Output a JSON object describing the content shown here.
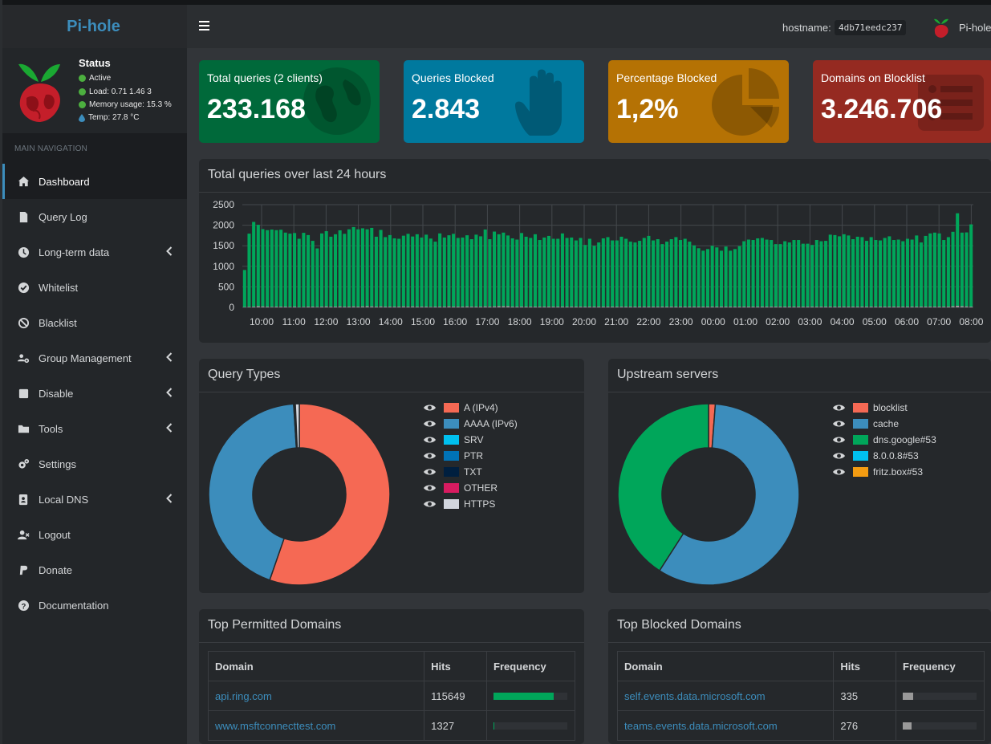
{
  "app": {
    "logo": "Pi-hole"
  },
  "status": {
    "title": "Status",
    "active": "Active",
    "load": "Load:  0.71  1.46  3",
    "memory": "Memory usage:  15.3 %",
    "temp": "Temp: 27.8 °C"
  },
  "nav": {
    "header": "MAIN NAVIGATION",
    "items": [
      {
        "label": "Dashboard",
        "icon": "home-icon",
        "active": true,
        "chevron": false
      },
      {
        "label": "Query Log",
        "icon": "file-icon",
        "chevron": false
      },
      {
        "label": "Long-term data",
        "icon": "clock-icon",
        "chevron": true
      },
      {
        "label": "Whitelist",
        "icon": "check-circle-icon",
        "chevron": false
      },
      {
        "label": "Blacklist",
        "icon": "ban-icon",
        "chevron": false
      },
      {
        "label": "Group Management",
        "icon": "users-cog-icon",
        "chevron": true
      },
      {
        "label": "Disable",
        "icon": "stop-icon",
        "chevron": true
      },
      {
        "label": "Tools",
        "icon": "folder-icon",
        "chevron": true
      },
      {
        "label": "Settings",
        "icon": "cogs-icon",
        "chevron": false
      },
      {
        "label": "Local DNS",
        "icon": "address-book-icon",
        "chevron": true
      },
      {
        "label": "Logout",
        "icon": "user-times-icon",
        "chevron": false
      },
      {
        "label": "Donate",
        "icon": "paypal-icon",
        "chevron": false
      },
      {
        "label": "Documentation",
        "icon": "question-circle-icon",
        "chevron": false
      }
    ]
  },
  "topbar": {
    "hostname_label": "hostname:",
    "hostname": "4db71eedc237",
    "user": "Pi-hole"
  },
  "stats": [
    {
      "label": "Total queries (2 clients)",
      "value": "233.168",
      "color": "#00693a",
      "icon": "globe-icon"
    },
    {
      "label": "Queries Blocked",
      "value": "2.843",
      "color": "#00799e",
      "icon": "hand-icon"
    },
    {
      "label": "Percentage Blocked",
      "value": "1,2%",
      "color": "#b57204",
      "icon": "pie-chart-icon"
    },
    {
      "label": "Domains on Blocklist",
      "value": "3.246.706",
      "color": "#952a21",
      "icon": "list-icon"
    }
  ],
  "queries_panel": {
    "title": "Total queries over last 24 hours"
  },
  "chart_data": [
    {
      "type": "bar",
      "xlabel": "",
      "ylabel": "",
      "ylim": [
        0,
        2500
      ],
      "yticks": [
        "2500",
        "2000",
        "1500",
        "1000",
        "500",
        "0"
      ],
      "xticks": [
        "10:00",
        "11:00",
        "12:00",
        "13:00",
        "14:00",
        "15:00",
        "16:00",
        "17:00",
        "18:00",
        "19:00",
        "20:00",
        "21:00",
        "22:00",
        "23:00",
        "00:00",
        "01:00",
        "02:00",
        "03:00",
        "04:00",
        "05:00",
        "06:00",
        "07:00",
        "08:00"
      ],
      "grid": true,
      "series": [
        {
          "color": "#00a65a",
          "values": [
            900,
            1780,
            2060,
            1980,
            1880,
            1860,
            1880,
            1860,
            1870,
            1800,
            1780,
            1790,
            1660,
            1800,
            1740,
            1600,
            1420,
            1780,
            1830,
            1700,
            1760,
            1850,
            1770,
            1880,
            1930,
            1880,
            1900,
            1870,
            1910,
            1700,
            1860,
            1690,
            1740,
            1660,
            1650,
            1720,
            1770,
            1700,
            1760,
            1680,
            1750,
            1660,
            1580,
            1780,
            1680,
            1730,
            1770,
            1670,
            1680,
            1730,
            1640,
            1750,
            1710,
            1870,
            1640,
            1820,
            1750,
            1790,
            1720,
            1660,
            1630,
            1790,
            1700,
            1670,
            1760,
            1620,
            1680,
            1720,
            1650,
            1650,
            1780,
            1670,
            1680,
            1610,
            1670,
            1500,
            1650,
            1480,
            1560,
            1660,
            1690,
            1610,
            1610,
            1700,
            1650,
            1580,
            1560,
            1600,
            1670,
            1720,
            1610,
            1640,
            1520,
            1580,
            1640,
            1690,
            1620,
            1650,
            1580,
            1490,
            1420,
            1360,
            1400,
            1480,
            1440,
            1360,
            1460,
            1360,
            1400,
            1470,
            1590,
            1630,
            1620,
            1660,
            1670,
            1630,
            1620,
            1520,
            1520,
            1590,
            1560,
            1620,
            1620,
            1530,
            1530,
            1500,
            1620,
            1590,
            1600,
            1750,
            1740,
            1710,
            1760,
            1730,
            1640,
            1700,
            1690,
            1600,
            1690,
            1620,
            1610,
            1670,
            1710,
            1620,
            1630,
            1590,
            1650,
            1630,
            1730,
            1560,
            1720,
            1780,
            1800,
            1780,
            1620,
            1690,
            1810,
            2250,
            1790,
            1800,
            2000
          ]
        },
        {
          "color": "#999999",
          "values": [
            10,
            15,
            20,
            30,
            25,
            20,
            15,
            20,
            20,
            20,
            15,
            20,
            10,
            15,
            20,
            20,
            15,
            20,
            25,
            20,
            20,
            25,
            20,
            20,
            25,
            20,
            25,
            30,
            25,
            20,
            25,
            20,
            20,
            20,
            20,
            25,
            20,
            25,
            20,
            20,
            20,
            15,
            20,
            20,
            20,
            25,
            20,
            20,
            20,
            25,
            20,
            20,
            20,
            25,
            20,
            25,
            30,
            30,
            30,
            20,
            20,
            20,
            20,
            20,
            20,
            20,
            20,
            20,
            20,
            20,
            20,
            20,
            20,
            20,
            20,
            20,
            20,
            20,
            20,
            20,
            20,
            20,
            20,
            20,
            20,
            20,
            20,
            20,
            20,
            20,
            20,
            20,
            20,
            20,
            20,
            20,
            20,
            20,
            20,
            20,
            20,
            20,
            20,
            20,
            20,
            20,
            20,
            20,
            20,
            20,
            20,
            20,
            20,
            20,
            20,
            20,
            20,
            20,
            20,
            20,
            20,
            20,
            20,
            20,
            20,
            20,
            20,
            20,
            20,
            20,
            20,
            20,
            20,
            20,
            20,
            20,
            20,
            20,
            20,
            20,
            20,
            20,
            20,
            20,
            20,
            20,
            20,
            20,
            20,
            20,
            20,
            20,
            20,
            20,
            20,
            20,
            30,
            40,
            30,
            25,
            20
          ]
        }
      ]
    },
    {
      "type": "pie",
      "title": "Query Types",
      "labels": [
        "A (IPv4)",
        "AAAA (IPv6)",
        "SRV",
        "PTR",
        "TXT",
        "OTHER",
        "HTTPS"
      ],
      "colors": [
        "#f56954",
        "#3c8dbc",
        "#00c0ef",
        "#0073b7",
        "#001f3f",
        "#d81b60",
        "#d2d6de"
      ],
      "values": [
        55.3,
        43.7,
        0.05,
        0.15,
        0.05,
        0.05,
        0.7
      ]
    },
    {
      "type": "pie",
      "title": "Upstream servers",
      "labels": [
        "blocklist",
        "cache",
        "dns.google#53",
        "8.0.0.8#53",
        "fritz.box#53"
      ],
      "colors": [
        "#f56954",
        "#3c8dbc",
        "#00a65a",
        "#00c0ef",
        "#f39c12"
      ],
      "values": [
        1.2,
        57.9,
        40.9,
        0,
        0
      ]
    }
  ],
  "query_types": {
    "title": "Query Types"
  },
  "upstream": {
    "title": "Upstream servers"
  },
  "top_permitted": {
    "title": "Top Permitted Domains",
    "headers": [
      "Domain",
      "Hits",
      "Frequency"
    ],
    "rows": [
      {
        "domain": "api.ring.com",
        "hits": "115649",
        "freq": 0.82
      },
      {
        "domain": "www.msftconnecttest.com",
        "hits": "1327",
        "freq": 0.01
      }
    ]
  },
  "top_blocked": {
    "title": "Top Blocked Domains",
    "headers": [
      "Domain",
      "Hits",
      "Frequency"
    ],
    "rows": [
      {
        "domain": "self.events.data.microsoft.com",
        "hits": "335",
        "freq": 0.14
      },
      {
        "domain": "teams.events.data.microsoft.com",
        "hits": "276",
        "freq": 0.12
      }
    ]
  }
}
